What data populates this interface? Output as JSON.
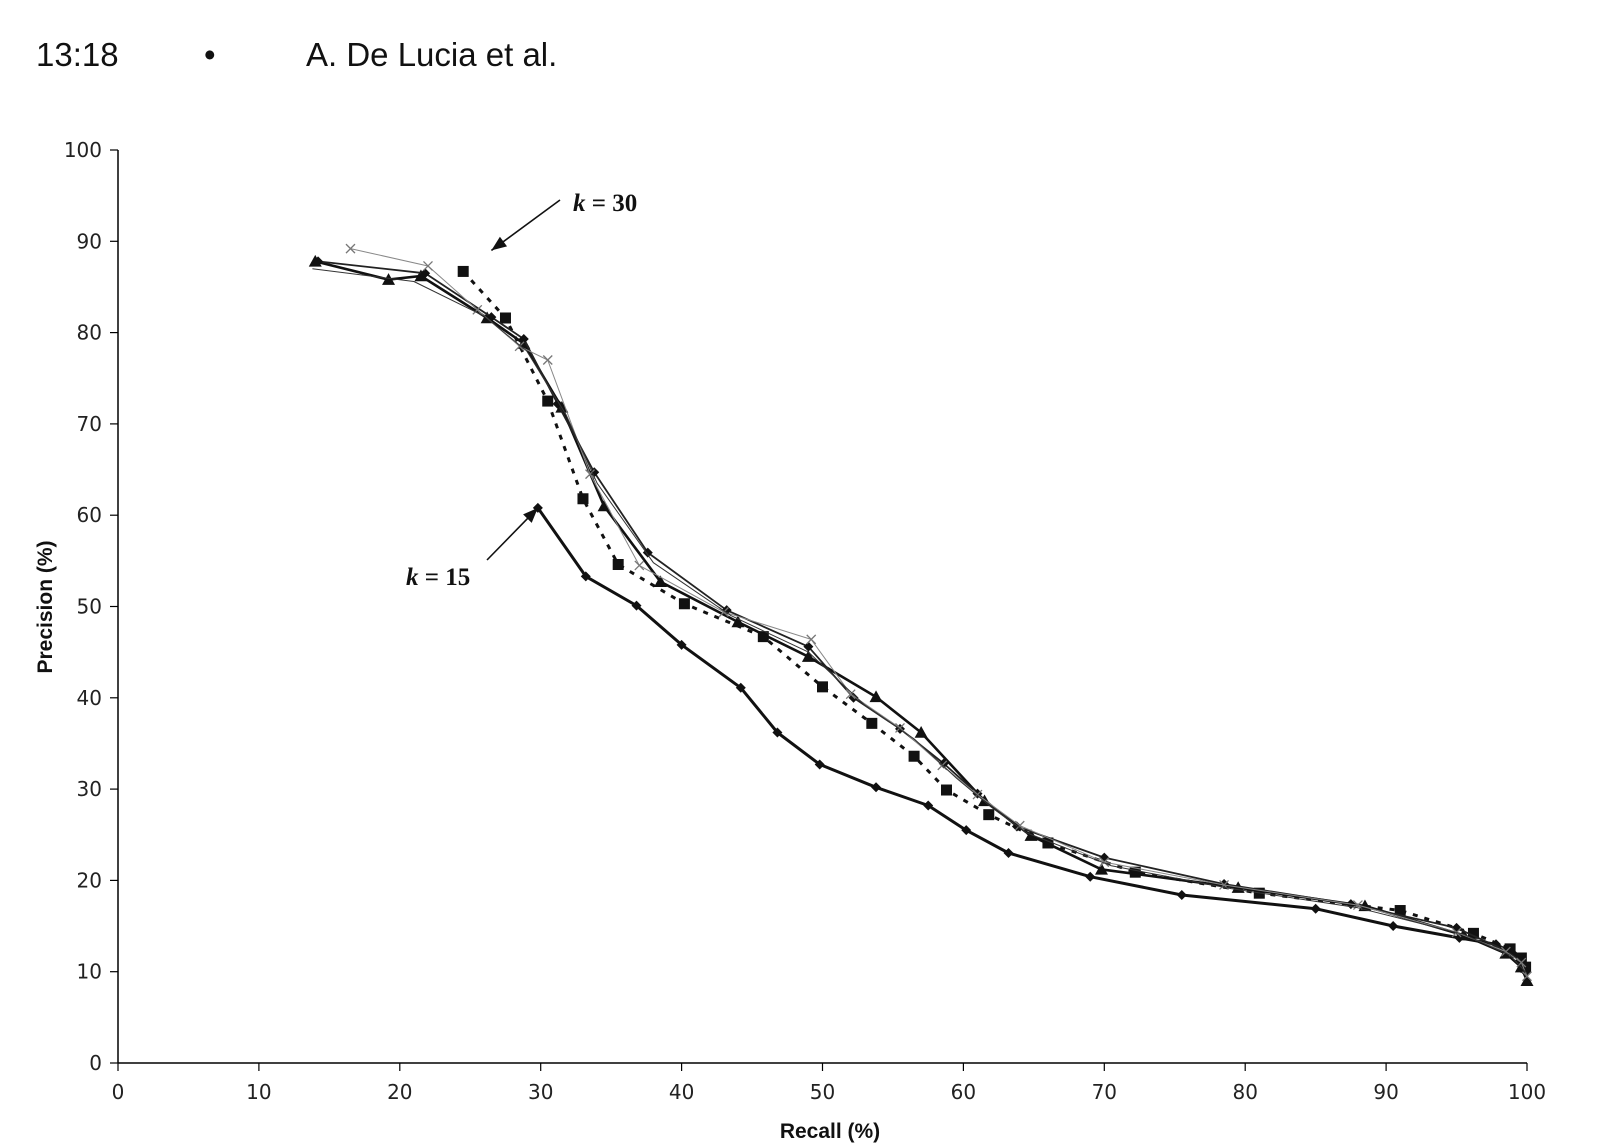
{
  "header": {
    "page_number": "13:18",
    "bullet": "•",
    "authors": "A. De Lucia et al."
  },
  "chart_data": {
    "type": "line",
    "title": "",
    "xlabel": "Recall (%)",
    "ylabel": "Precision (%)",
    "xlim": [
      0,
      100
    ],
    "ylim": [
      0,
      100
    ],
    "xticks": [
      "0",
      "10",
      "20",
      "30",
      "40",
      "50",
      "60",
      "70",
      "80",
      "90",
      "100"
    ],
    "yticks": [
      "0",
      "10",
      "20",
      "30",
      "40",
      "50",
      "60",
      "70",
      "80",
      "90",
      "100"
    ],
    "grid": false,
    "legend": "none",
    "annotations": [
      {
        "label": "k = 30",
        "k_text": "k",
        "rest_text": " = 30",
        "points_to": [
          26.5,
          89
        ]
      },
      {
        "label": "k = 15",
        "k_text": "k",
        "rest_text": " = 15",
        "points_to": [
          29.8,
          60.8
        ]
      }
    ],
    "series": [
      {
        "style": "k15",
        "marker": "diamond",
        "x": [
          29.8,
          33.2,
          36.8,
          40.0,
          44.2,
          46.8,
          49.8,
          53.8,
          57.5,
          60.2,
          63.2,
          69.0,
          75.5,
          85.0,
          90.5,
          95.2,
          97.8,
          99.0,
          99.6,
          99.9
        ],
        "y": [
          60.8,
          53.3,
          50.1,
          45.8,
          41.1,
          36.2,
          32.7,
          30.2,
          28.2,
          25.5,
          23.0,
          20.4,
          18.4,
          16.9,
          15.0,
          13.7,
          13.0,
          12.0,
          11.0,
          10.0
        ]
      },
      {
        "style": "dotted",
        "marker": "square",
        "x": [
          24.5,
          27.5,
          30.5,
          33.0,
          35.5,
          40.2,
          45.8,
          50.0,
          53.5,
          56.5,
          58.8,
          61.8,
          66.0,
          72.2,
          81.0,
          91.0,
          96.2,
          98.8,
          99.6,
          99.9
        ],
        "y": [
          86.7,
          81.6,
          72.5,
          61.8,
          54.6,
          50.3,
          46.7,
          41.2,
          37.2,
          33.6,
          29.9,
          27.2,
          24.1,
          20.9,
          18.6,
          16.7,
          14.2,
          12.5,
          11.5,
          10.5
        ]
      },
      {
        "style": "thick",
        "marker": "triangle",
        "x": [
          14.0,
          19.2,
          21.5,
          26.2,
          28.8,
          31.5,
          34.5,
          38.5,
          44.0,
          49.0,
          53.8,
          57.0,
          61.5,
          64.8,
          69.8,
          79.5,
          88.5,
          95.5,
          98.5,
          99.6,
          100.0
        ],
        "y": [
          87.8,
          85.8,
          86.2,
          81.6,
          78.8,
          71.8,
          61.0,
          52.7,
          48.3,
          44.5,
          40.1,
          36.2,
          28.7,
          24.9,
          21.2,
          19.2,
          17.2,
          14.0,
          12.0,
          10.5,
          9.0
        ]
      },
      {
        "style": "medium",
        "marker": "diamond",
        "x": [
          14.2,
          21.8,
          26.5,
          28.8,
          31.2,
          33.8,
          37.6,
          43.2,
          49.0,
          52.2,
          55.5,
          58.6,
          61.0,
          63.8,
          70.0,
          78.5,
          87.5,
          95.0,
          98.5,
          99.5,
          99.9
        ],
        "y": [
          87.8,
          86.5,
          81.7,
          79.3,
          72.2,
          64.7,
          55.9,
          49.6,
          45.6,
          40.0,
          36.6,
          32.8,
          29.5,
          25.9,
          22.5,
          19.6,
          17.4,
          14.8,
          12.3,
          11.2,
          10.0
        ]
      },
      {
        "style": "thin",
        "marker": "x",
        "x": [
          16.5,
          22.0,
          25.5,
          28.5,
          30.5,
          33.5,
          37.0,
          43.0,
          49.2,
          52.0,
          55.5,
          58.5,
          61.0,
          64.0,
          70.0,
          78.5,
          88.0,
          95.0,
          98.5,
          99.6,
          100.0
        ],
        "y": [
          89.2,
          87.3,
          82.5,
          78.5,
          77.0,
          64.5,
          54.5,
          49.4,
          46.4,
          40.4,
          36.7,
          32.6,
          29.4,
          26.0,
          22.0,
          19.5,
          17.3,
          14.3,
          12.2,
          11.0,
          9.5
        ]
      },
      {
        "style": "thin2",
        "marker": "none",
        "x": [
          13.8,
          21.0,
          26.0,
          29.0,
          31.8,
          34.0,
          38.0,
          43.5,
          49.0,
          53.0,
          56.5,
          59.5,
          62.0,
          64.5,
          70.5,
          79.0,
          88.0,
          95.5,
          98.8,
          100.0
        ],
        "y": [
          87.0,
          85.6,
          81.8,
          78.0,
          71.0,
          63.5,
          54.8,
          49.0,
          45.0,
          39.2,
          35.5,
          31.2,
          28.0,
          25.2,
          21.6,
          19.1,
          17.0,
          14.1,
          11.8,
          9.8
        ]
      }
    ]
  }
}
